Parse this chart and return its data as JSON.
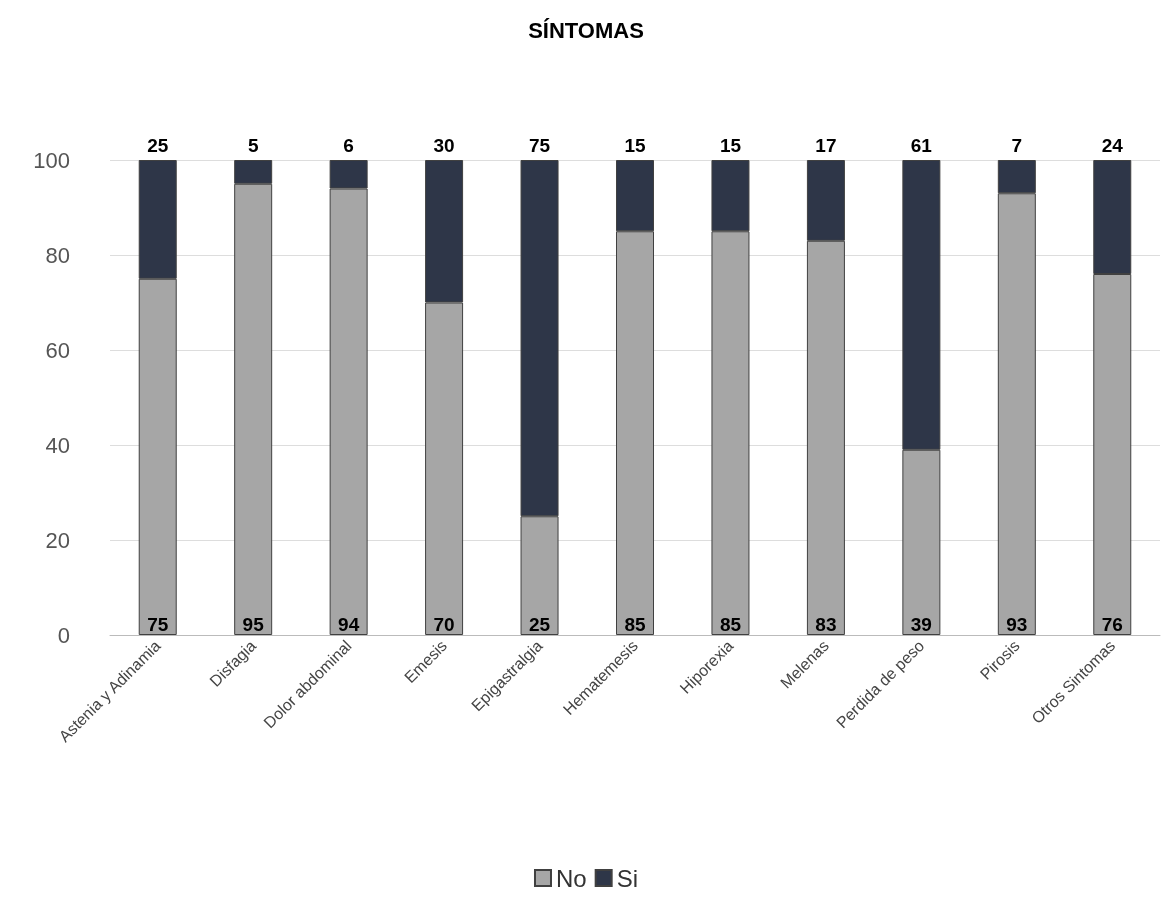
{
  "chart_data": {
    "type": "bar",
    "title": "SÍNTOMAS",
    "stacked": true,
    "categories": [
      "Astenia y Adinamia",
      "Disfagia",
      "Dolor abdominal",
      "Emesis",
      "Epigastralgia",
      "Hematemesis",
      "Hiporexia",
      "Melenas",
      "Perdida de peso",
      "Pirosis",
      "Otros Sintomas"
    ],
    "series": [
      {
        "name": "No",
        "color": "#a6a6a6",
        "values": [
          75,
          95,
          94,
          70,
          25,
          85,
          85,
          83,
          39,
          93,
          76
        ]
      },
      {
        "name": "Si",
        "color": "#2e3648",
        "values": [
          25,
          5,
          6,
          30,
          75,
          15,
          15,
          17,
          61,
          7,
          24
        ]
      }
    ],
    "ylim": [
      0,
      100
    ],
    "yticks": [
      0,
      20,
      40,
      60,
      80,
      100
    ],
    "grid": "y",
    "legend": "bottom",
    "data_labels": true
  }
}
